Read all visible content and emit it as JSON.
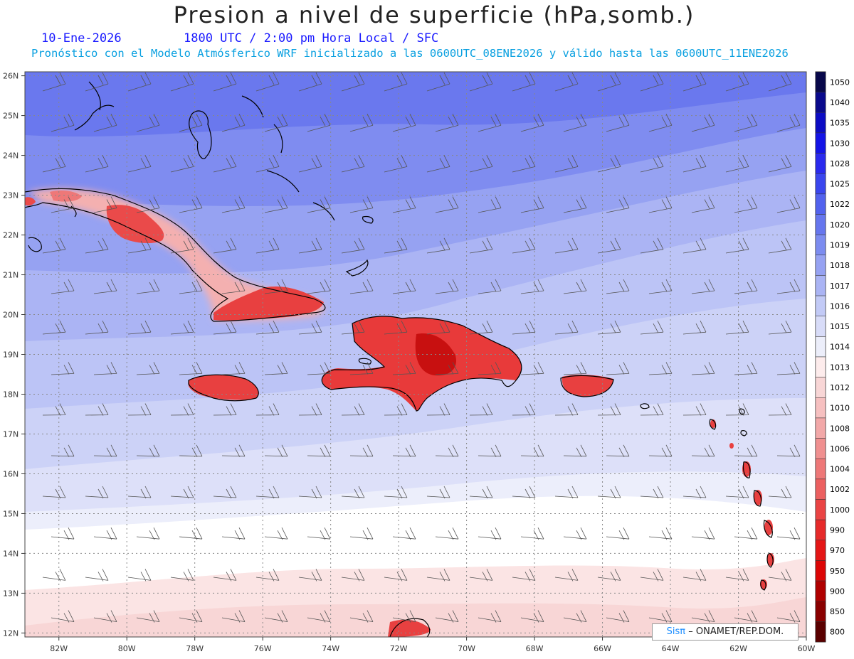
{
  "header": {
    "title": "Presion a nivel de superficie (hPa,somb.)",
    "date": "10-Ene-2026",
    "time_info": "1800 UTC / 2:00 pm Hora Local / SFC",
    "model_info": "Pronóstico con el Modelo Atmósferico WRF inicializado a las 0600UTC_08ENE2026 y válido hasta las  0600UTC_11ENE2026"
  },
  "map": {
    "lat_labels": [
      "26N",
      "25N",
      "24N",
      "23N",
      "22N",
      "21N",
      "20N",
      "19N",
      "18N",
      "17N",
      "16N",
      "15N",
      "14N",
      "13N",
      "12N"
    ],
    "lon_labels": [
      "82W",
      "80W",
      "78W",
      "76W",
      "74W",
      "72W",
      "70W",
      "68W",
      "66W",
      "64W",
      "62W",
      "60W"
    ]
  },
  "colorbar": {
    "levels": [
      "1050",
      "1040",
      "1035",
      "1030",
      "1028",
      "1025",
      "1022",
      "1020",
      "1019",
      "1018",
      "1017",
      "1016",
      "1015",
      "1014",
      "1013",
      "1012",
      "1010",
      "1008",
      "1006",
      "1004",
      "1002",
      "1000",
      "990",
      "970",
      "950",
      "900",
      "850",
      "800"
    ],
    "colors": [
      "#08084a",
      "#0a0a8c",
      "#0c0cc4",
      "#1414e6",
      "#2a2aee",
      "#3a46ee",
      "#5262ee",
      "#6676ee",
      "#7c8cf0",
      "#96a2f2",
      "#aab4f4",
      "#c2caf6",
      "#d8dcf8",
      "#eceefa",
      "#fdecec",
      "#f8d6d6",
      "#f6c0c0",
      "#f2a8a8",
      "#f09090",
      "#ee7878",
      "#ec6060",
      "#ea4444",
      "#e62a2a",
      "#e41616",
      "#dc0606",
      "#b00000",
      "#8a0000",
      "#5a0000"
    ]
  },
  "credit": {
    "sis": "Sisπ",
    "text": "– ONAMET/REP.DOM."
  }
}
